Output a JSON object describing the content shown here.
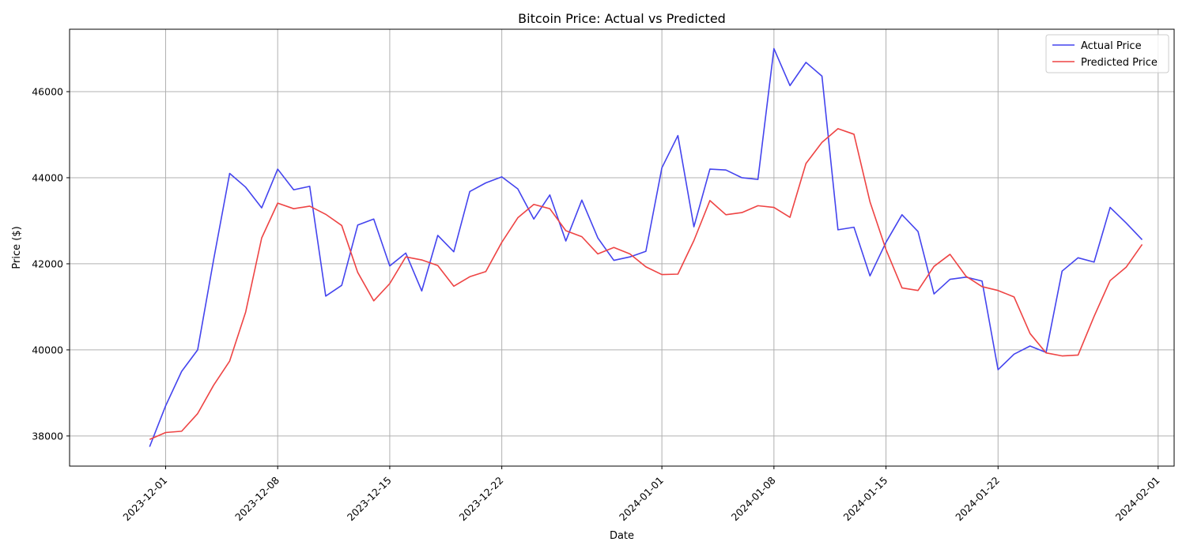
{
  "chart_data": {
    "type": "line",
    "title": "Bitcoin Price: Actual vs Predicted",
    "xlabel": "Date",
    "ylabel": "Price ($)",
    "x_range": [
      "2023-11-25",
      "2024-02-02"
    ],
    "ylim": [
      37300,
      47450
    ],
    "x_ticks": [
      "2023-12-01",
      "2023-12-08",
      "2023-12-15",
      "2023-12-22",
      "2024-01-01",
      "2024-01-08",
      "2024-01-15",
      "2024-01-22",
      "2024-02-01"
    ],
    "y_ticks": [
      38000,
      40000,
      42000,
      44000,
      46000
    ],
    "grid": true,
    "legend_position": "top-right",
    "start_date": "2023-11-30",
    "series": [
      {
        "name": "Actual Price",
        "color": "#4444ee",
        "values": [
          37750,
          38700,
          39500,
          40000,
          42100,
          44100,
          43780,
          43300,
          44200,
          43720,
          43800,
          41250,
          41500,
          42900,
          43040,
          41950,
          42250,
          41370,
          42660,
          42280,
          43680,
          43880,
          44020,
          43740,
          43040,
          43600,
          42530,
          43480,
          42600,
          42080,
          42160,
          42290,
          44230,
          44980,
          42860,
          44200,
          44180,
          44000,
          43960,
          47000,
          46140,
          46680,
          46360,
          42790,
          42850,
          41720,
          42500,
          43140,
          42750,
          41300,
          41640,
          41690,
          41600,
          39540,
          39900,
          40090,
          39940,
          41830,
          42140,
          42040,
          43310,
          42950,
          42560
        ]
      },
      {
        "name": "Predicted Price",
        "color": "#ee4444",
        "values": [
          37920,
          38080,
          38110,
          38520,
          39180,
          39740,
          40880,
          42600,
          43410,
          43280,
          43340,
          43150,
          42890,
          41800,
          41140,
          41540,
          42160,
          42090,
          41960,
          41480,
          41700,
          41820,
          42500,
          43070,
          43380,
          43280,
          42770,
          42630,
          42230,
          42380,
          42230,
          41930,
          41750,
          41760,
          42540,
          43470,
          43140,
          43190,
          43350,
          43310,
          43080,
          44330,
          44820,
          45140,
          45010,
          43440,
          42330,
          41440,
          41380,
          41940,
          42220,
          41710,
          41470,
          41380,
          41230,
          40380,
          39930,
          39860,
          39880,
          40780,
          41610,
          41920,
          42450
        ]
      }
    ]
  }
}
